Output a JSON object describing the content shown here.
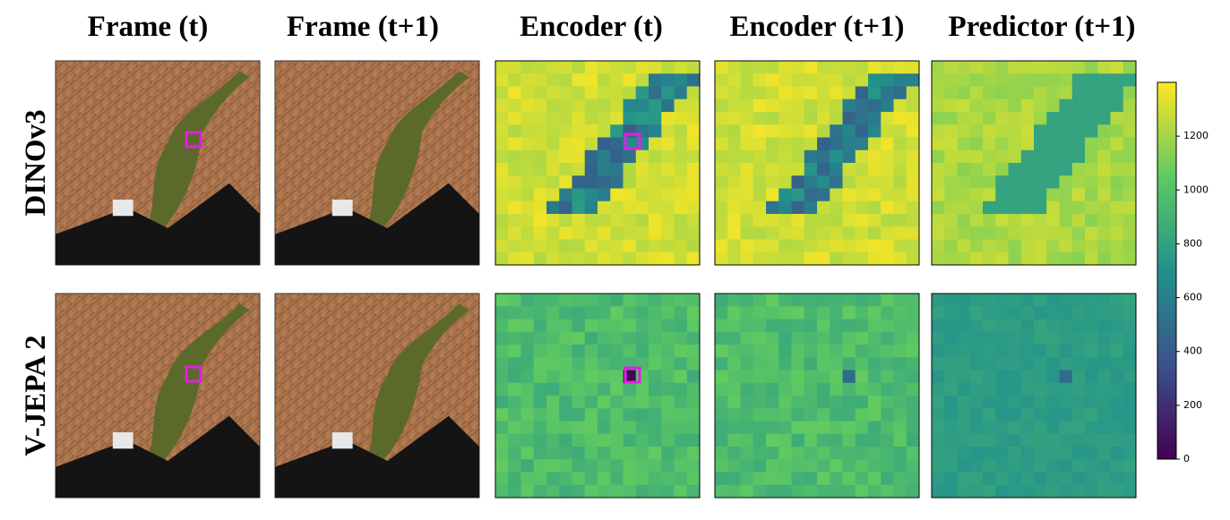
{
  "column_titles": [
    "Frame (t)",
    "Frame (t+1)",
    "Encoder (t)",
    "Encoder (t+1)",
    "Predictor (t+1)"
  ],
  "row_labels": [
    "DINOv3",
    "V-JEPA 2"
  ],
  "colorbar": {
    "lim": [
      0,
      1400
    ],
    "ticks": [
      0,
      200,
      400,
      600,
      800,
      1000,
      1200
    ]
  }
}
